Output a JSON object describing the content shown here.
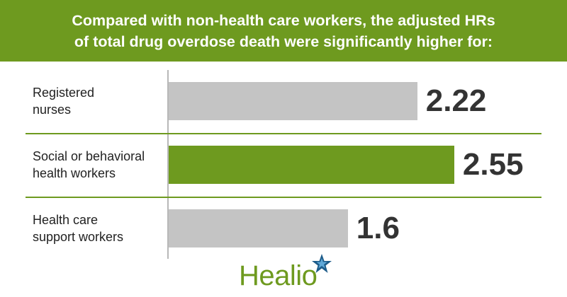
{
  "header": {
    "line1": "Compared with non-health care workers, the adjusted HRs",
    "line2": "of total drug overdose death were significantly higher for:"
  },
  "colors": {
    "brand_green": "#6e9a1f",
    "bar_gray": "#c4c4c4",
    "bar_highlight": "#6e9a1f"
  },
  "chart_data": {
    "type": "bar",
    "orientation": "horizontal",
    "title": "Compared with non-health care workers, the adjusted HRs of total drug overdose death were significantly higher for:",
    "categories": [
      [
        "Registered",
        "nurses"
      ],
      [
        "Social or behavioral",
        "health workers"
      ],
      [
        "Health care",
        "support workers"
      ]
    ],
    "values": [
      2.22,
      2.55,
      1.6
    ],
    "value_labels": [
      "2.22",
      "2.55",
      "1.6"
    ],
    "highlight_index": 1,
    "xlim": [
      0,
      3.1
    ],
    "xlabel": "",
    "ylabel": ""
  },
  "logo": {
    "text": "Healio",
    "icon": "star-icon"
  }
}
